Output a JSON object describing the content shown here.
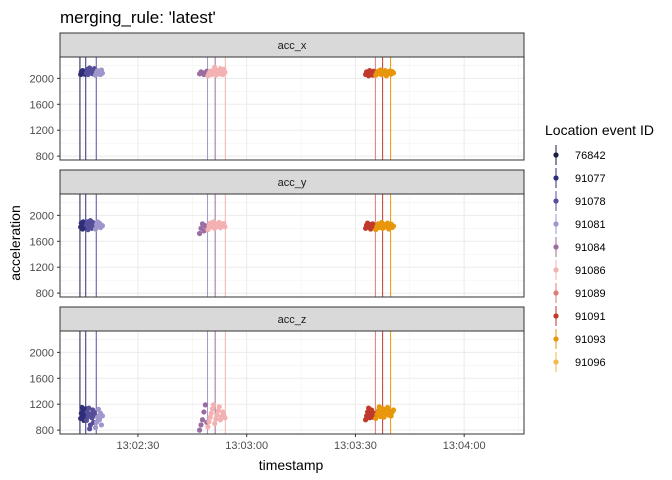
{
  "chart_data": {
    "type": "scatter",
    "title": "merging_rule: 'latest'",
    "xlabel": "timestamp",
    "ylabel": "acceleration",
    "x_ticks": [
      "13:02:30",
      "13:03:00",
      "13:03:30",
      "13:04:00"
    ],
    "x_tick_seconds": [
      150,
      180,
      210,
      240
    ],
    "xlim_seconds": [
      128.5,
      256.5
    ],
    "ylim": [
      740,
      2330
    ],
    "y_ticks": [
      800,
      1200,
      1600,
      2000
    ],
    "grid": true,
    "legend_position": "right",
    "legend": {
      "title": "Location event ID",
      "entries": [
        {
          "id": "76842",
          "color": "#1b1b45"
        },
        {
          "id": "91077",
          "color": "#2e2e78"
        },
        {
          "id": "91078",
          "color": "#574e9a"
        },
        {
          "id": "91081",
          "color": "#9e97cc"
        },
        {
          "id": "91084",
          "color": "#9c6da0"
        },
        {
          "id": "91086",
          "color": "#f4b1b1"
        },
        {
          "id": "91089",
          "color": "#de7a7a"
        },
        {
          "id": "91091",
          "color": "#bf3a2b"
        },
        {
          "id": "91093",
          "color": "#e8960a"
        },
        {
          "id": "91096",
          "color": "#f3b94b"
        }
      ]
    },
    "event_lines": [
      {
        "id": "76842",
        "t": 134.0
      },
      {
        "id": "91077",
        "t": 135.6
      },
      {
        "id": "91078",
        "t": 138.5
      },
      {
        "id": "91081",
        "t": 169.2
      },
      {
        "id": "91084",
        "t": 171.3
      },
      {
        "id": "91086",
        "t": 174.1
      },
      {
        "id": "91089",
        "t": 215.5
      },
      {
        "id": "91091",
        "t": 217.5
      },
      {
        "id": "91093",
        "t": 219.7
      }
    ],
    "panels": [
      {
        "strip": "acc_x",
        "clusters": [
          {
            "id": "91077",
            "t0": 134.2,
            "t1": 135.8,
            "y": [
              2060,
              2100,
              2080,
              2120,
              2070,
              2090,
              2110,
              2065,
              2085,
              2095
            ]
          },
          {
            "id": "91078",
            "t0": 135.8,
            "t1": 138.2,
            "y": [
              2080,
              2140,
              2060,
              2120,
              2160,
              2090,
              2100,
              2130,
              2070,
              2110,
              2150,
              2085
            ]
          },
          {
            "id": "91081",
            "t0": 138.3,
            "t1": 140.2,
            "y": [
              2050,
              2090,
              2120,
              2070,
              2100,
              2060,
              2130,
              2080
            ]
          },
          {
            "id": "91084",
            "t0": 167.0,
            "t1": 169.0,
            "y": [
              2070,
              2100,
              2090,
              2060,
              2080,
              2110
            ]
          },
          {
            "id": "91086",
            "t0": 169.3,
            "t1": 174.0,
            "y": [
              2040,
              2080,
              2110,
              2060,
              2090,
              2130,
              2170,
              2050,
              2100,
              2120,
              2070,
              2150,
              2085,
              2060,
              2140,
              2095
            ]
          },
          {
            "id": "91091",
            "t0": 212.8,
            "t1": 215.3,
            "y": [
              2060,
              2100,
              2080,
              2040,
              2120,
              2070,
              2090,
              2050,
              2110,
              2085
            ]
          },
          {
            "id": "91093",
            "t0": 215.6,
            "t1": 220.5,
            "y": [
              2050,
              2090,
              2110,
              2070,
              2130,
              2060,
              2100,
              2080,
              2120,
              2040,
              2095,
              2075,
              2115,
              2065,
              2105,
              2085
            ]
          }
        ]
      },
      {
        "strip": "acc_y",
        "clusters": [
          {
            "id": "91077",
            "t0": 134.2,
            "t1": 135.8,
            "y": [
              1820,
              1880,
              1850,
              1790,
              1900,
              1840,
              1870,
              1810,
              1860,
              1830
            ]
          },
          {
            "id": "91078",
            "t0": 135.8,
            "t1": 138.2,
            "y": [
              1850,
              1900,
              1780,
              1880,
              1820,
              1920,
              1860,
              1800,
              1890,
              1840,
              1870,
              1810
            ]
          },
          {
            "id": "91081",
            "t0": 138.3,
            "t1": 140.2,
            "y": [
              1790,
              1860,
              1900,
              1830,
              1880,
              1810,
              1850,
              1840
            ]
          },
          {
            "id": "91084",
            "t0": 167.0,
            "t1": 169.0,
            "y": [
              1720,
              1800,
              1870,
              1760,
              1840,
              1780
            ]
          },
          {
            "id": "91086",
            "t0": 169.3,
            "t1": 174.0,
            "y": [
              1780,
              1840,
              1880,
              1820,
              1860,
              1900,
              1800,
              1850,
              1870,
              1830,
              1890,
              1810,
              1860,
              1840,
              1875,
              1825
            ]
          },
          {
            "id": "91091",
            "t0": 212.8,
            "t1": 215.3,
            "y": [
              1800,
              1850,
              1880,
              1820,
              1860,
              1790,
              1840,
              1870,
              1810,
              1830
            ]
          },
          {
            "id": "91093",
            "t0": 215.6,
            "t1": 220.5,
            "y": [
              1780,
              1830,
              1870,
              1810,
              1850,
              1890,
              1800,
              1840,
              1860,
              1820,
              1880,
              1790,
              1845,
              1865,
              1815,
              1835
            ]
          }
        ]
      },
      {
        "strip": "acc_z",
        "clusters": [
          {
            "id": "91077",
            "t0": 134.2,
            "t1": 135.8,
            "y": [
              980,
              1060,
              1150,
              1020,
              1100,
              950,
              1080,
              1010,
              1130,
              1040
            ]
          },
          {
            "id": "91078",
            "t0": 135.8,
            "t1": 138.2,
            "y": [
              950,
              1080,
              1010,
              1140,
              820,
              880,
              1050,
              990,
              1110,
              920,
              1070,
              1030
            ]
          },
          {
            "id": "91081",
            "t0": 138.3,
            "t1": 140.2,
            "y": [
              840,
              920,
              1000,
              1120,
              960,
              1060,
              880,
              1020
            ]
          },
          {
            "id": "91084",
            "t0": 167.0,
            "t1": 169.0,
            "y": [
              800,
              880,
              960,
              1080,
              1190,
              920
            ]
          },
          {
            "id": "91086",
            "t0": 169.3,
            "t1": 174.0,
            "y": [
              850,
              930,
              1000,
              1060,
              1130,
              1190,
              900,
              970,
              1030,
              1100,
              1160,
              960,
              1010,
              1080,
              1040,
              990
            ]
          },
          {
            "id": "91091",
            "t0": 212.8,
            "t1": 215.3,
            "y": [
              960,
              1020,
              1080,
              1140,
              990,
              1050,
              1110,
              1000,
              1060,
              1030
            ]
          },
          {
            "id": "91093",
            "t0": 215.6,
            "t1": 220.5,
            "y": [
              980,
              1040,
              1100,
              1160,
              1010,
              1070,
              1130,
              1000,
              1060,
              1120,
              1150,
              1030,
              1090,
              1020,
              1080,
              1110
            ]
          }
        ]
      }
    ]
  }
}
